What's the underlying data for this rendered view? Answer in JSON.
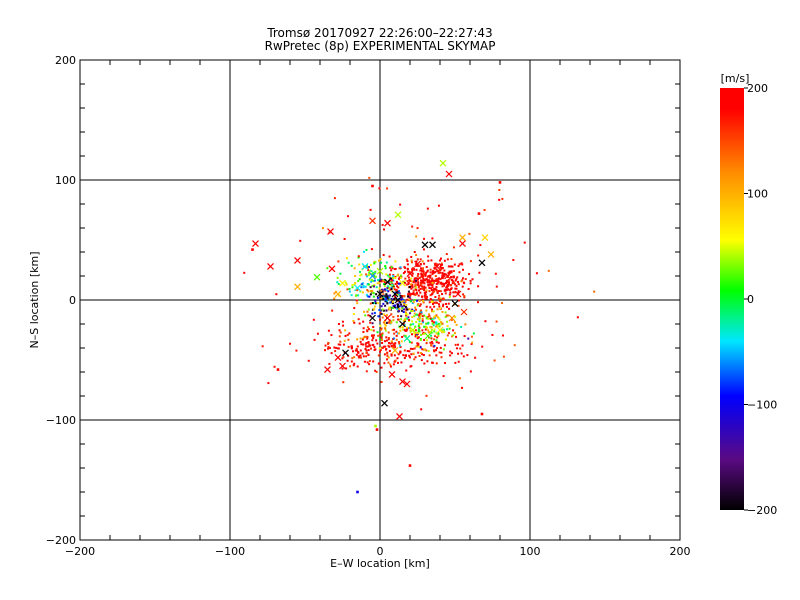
{
  "chart_data": {
    "type": "scatter",
    "title": "Tromsø 20170927 22:26:00–22:27:43",
    "subtitle": "RwPretec (8p) EXPERIMENTAL SKYMAP",
    "xlabel": "E–W location [km]",
    "ylabel": "N–S location [km]",
    "xlim": [
      -200,
      200
    ],
    "ylim": [
      -200,
      200
    ],
    "x_ticks": [
      -200,
      -100,
      0,
      100,
      200
    ],
    "y_ticks": [
      -200,
      -100,
      0,
      100,
      200
    ],
    "x_tick_labels": [
      "−200",
      "−100",
      "0",
      "100",
      "200"
    ],
    "y_tick_labels": [
      "−200",
      "−100",
      "0",
      "100",
      "200"
    ],
    "grid": true,
    "colorbar": {
      "label": "[m/s]",
      "range": [
        -200,
        200
      ],
      "ticks": [
        200,
        100,
        0,
        -100,
        -200
      ],
      "tick_labels": [
        "200",
        "100",
        "0",
        "−100",
        "−200"
      ],
      "colormap": [
        "#000000",
        "#5a0a82",
        "#0000ff",
        "#00e6ff",
        "#00ff00",
        "#ffff00",
        "#ff8c00",
        "#ff0000"
      ]
    },
    "points_note": "large markers (x) shown individually; density of small points approximates dense cloud",
    "points": [
      {
        "x": 42,
        "y": 114,
        "v": 40,
        "m": "x"
      },
      {
        "x": 46,
        "y": 105,
        "v": 200,
        "m": "x"
      },
      {
        "x": 80,
        "y": 98,
        "v": 200,
        "m": "d"
      },
      {
        "x": -5,
        "y": 95,
        "v": 200,
        "m": "d"
      },
      {
        "x": 12,
        "y": 71,
        "v": 40,
        "m": "x"
      },
      {
        "x": -5,
        "y": 66,
        "v": 160,
        "m": "x"
      },
      {
        "x": 5,
        "y": 64,
        "v": 200,
        "m": "x"
      },
      {
        "x": -33,
        "y": 57,
        "v": 200,
        "m": "x"
      },
      {
        "x": -83,
        "y": 47,
        "v": 200,
        "m": "x"
      },
      {
        "x": 55,
        "y": 52,
        "v": 100,
        "m": "x"
      },
      {
        "x": 55,
        "y": 47,
        "v": 200,
        "m": "x"
      },
      {
        "x": 70,
        "y": 52,
        "v": 80,
        "m": "x"
      },
      {
        "x": 74,
        "y": 38,
        "v": 100,
        "m": "x"
      },
      {
        "x": 30,
        "y": 46,
        "v": -200,
        "m": "x"
      },
      {
        "x": 35,
        "y": 46,
        "v": -200,
        "m": "x"
      },
      {
        "x": 68,
        "y": 31,
        "v": -200,
        "m": "x"
      },
      {
        "x": -55,
        "y": 33,
        "v": 200,
        "m": "x"
      },
      {
        "x": -73,
        "y": 28,
        "v": 200,
        "m": "x"
      },
      {
        "x": -32,
        "y": 26,
        "v": 200,
        "m": "x"
      },
      {
        "x": -42,
        "y": 19,
        "v": 20,
        "m": "x"
      },
      {
        "x": -55,
        "y": 11,
        "v": 100,
        "m": "x"
      },
      {
        "x": -25,
        "y": 14,
        "v": 60,
        "m": "x"
      },
      {
        "x": -28,
        "y": 5,
        "v": 100,
        "m": "x"
      },
      {
        "x": -15,
        "y": 10,
        "v": -40,
        "m": "x"
      },
      {
        "x": -10,
        "y": 28,
        "v": -40,
        "m": "x"
      },
      {
        "x": -5,
        "y": 20,
        "v": -60,
        "m": "x"
      },
      {
        "x": 0,
        "y": 24,
        "v": 40,
        "m": "x"
      },
      {
        "x": 5,
        "y": 15,
        "v": -200,
        "m": "x"
      },
      {
        "x": 10,
        "y": 5,
        "v": -200,
        "m": "x"
      },
      {
        "x": 0,
        "y": 5,
        "v": -200,
        "m": "x"
      },
      {
        "x": 12,
        "y": 0,
        "v": -200,
        "m": "x"
      },
      {
        "x": 15,
        "y": 14,
        "v": 60,
        "m": "x"
      },
      {
        "x": 20,
        "y": 22,
        "v": 200,
        "m": "x"
      },
      {
        "x": 25,
        "y": 30,
        "v": 200,
        "m": "x"
      },
      {
        "x": 38,
        "y": 28,
        "v": 200,
        "m": "x"
      },
      {
        "x": 45,
        "y": 20,
        "v": 200,
        "m": "x"
      },
      {
        "x": 52,
        "y": 5,
        "v": 200,
        "m": "x"
      },
      {
        "x": 50,
        "y": -3,
        "v": -200,
        "m": "x"
      },
      {
        "x": 56,
        "y": -10,
        "v": 160,
        "m": "x"
      },
      {
        "x": 48,
        "y": -15,
        "v": 120,
        "m": "x"
      },
      {
        "x": 40,
        "y": -25,
        "v": 60,
        "m": "x"
      },
      {
        "x": 32,
        "y": -30,
        "v": 20,
        "m": "x"
      },
      {
        "x": 22,
        "y": -25,
        "v": 40,
        "m": "x"
      },
      {
        "x": 15,
        "y": -20,
        "v": -200,
        "m": "x"
      },
      {
        "x": 18,
        "y": -32,
        "v": -20,
        "m": "x"
      },
      {
        "x": 10,
        "y": -42,
        "v": 100,
        "m": "x"
      },
      {
        "x": 5,
        "y": -15,
        "v": 200,
        "m": "x"
      },
      {
        "x": -5,
        "y": -15,
        "v": -200,
        "m": "x"
      },
      {
        "x": -28,
        "y": -48,
        "v": 200,
        "m": "x"
      },
      {
        "x": -25,
        "y": -55,
        "v": 200,
        "m": "x"
      },
      {
        "x": -35,
        "y": -58,
        "v": 200,
        "m": "x"
      },
      {
        "x": -23,
        "y": -44,
        "v": -200,
        "m": "x"
      },
      {
        "x": 8,
        "y": -62,
        "v": 200,
        "m": "x"
      },
      {
        "x": 15,
        "y": -68,
        "v": 200,
        "m": "x"
      },
      {
        "x": 18,
        "y": -70,
        "v": 200,
        "m": "x"
      },
      {
        "x": 3,
        "y": -86,
        "v": -200,
        "m": "x"
      },
      {
        "x": 13,
        "y": -97,
        "v": 200,
        "m": "x"
      },
      {
        "x": -68,
        "y": -58,
        "v": 200,
        "m": "d"
      },
      {
        "x": -2,
        "y": -108,
        "v": 200,
        "m": "d"
      },
      {
        "x": -3,
        "y": -105,
        "v": 40,
        "m": "d"
      },
      {
        "x": 20,
        "y": -138,
        "v": 200,
        "m": "d"
      },
      {
        "x": -15,
        "y": -160,
        "v": -100,
        "m": "d"
      },
      {
        "x": 68,
        "y": -95,
        "v": 200,
        "m": "d"
      },
      {
        "x": 66,
        "y": 72,
        "v": 200,
        "m": "d"
      },
      {
        "x": -85,
        "y": 42,
        "v": 200,
        "m": "d"
      }
    ]
  }
}
